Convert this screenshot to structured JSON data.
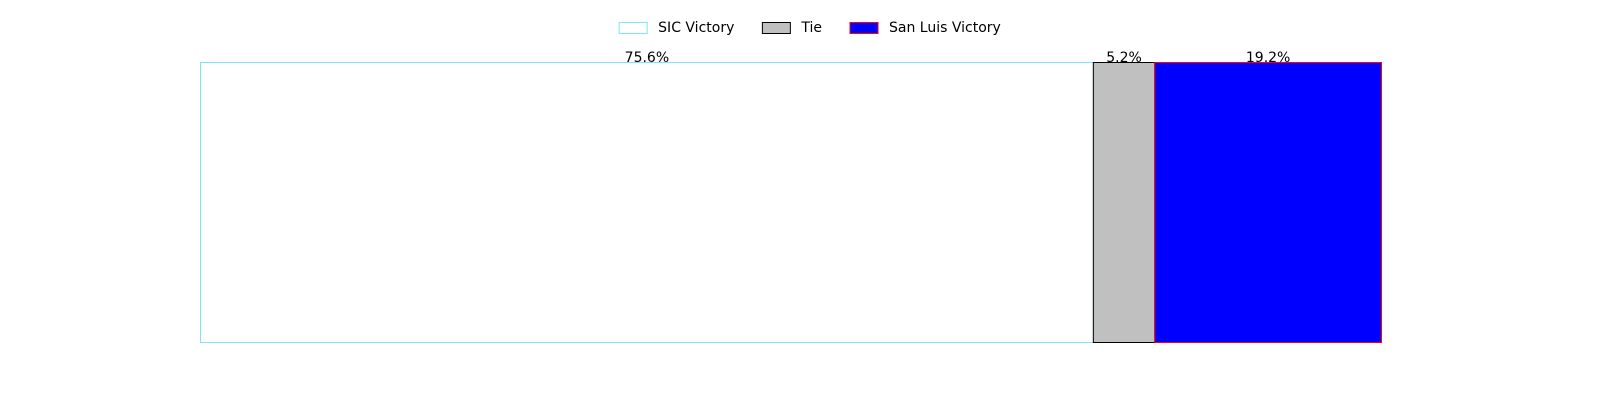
{
  "chart_data": {
    "type": "bar",
    "orientation": "horizontal-stacked",
    "title": "",
    "xlabel": "",
    "ylabel": "",
    "axes_visible": false,
    "grid": false,
    "legend_position": "top-center",
    "xlim": [
      0,
      100
    ],
    "series": [
      {
        "name": "SIC Victory",
        "value": 75.6,
        "label": "75.6%",
        "fill": "#ffffff",
        "stroke": "#7fe5f0"
      },
      {
        "name": "Tie",
        "value": 5.2,
        "label": "5.2%",
        "fill": "#c0c0c0",
        "stroke": "#000000"
      },
      {
        "name": "San Luis Victory",
        "value": 19.2,
        "label": "19.2%",
        "fill": "#0000ff",
        "stroke": "#ff0000"
      }
    ]
  }
}
